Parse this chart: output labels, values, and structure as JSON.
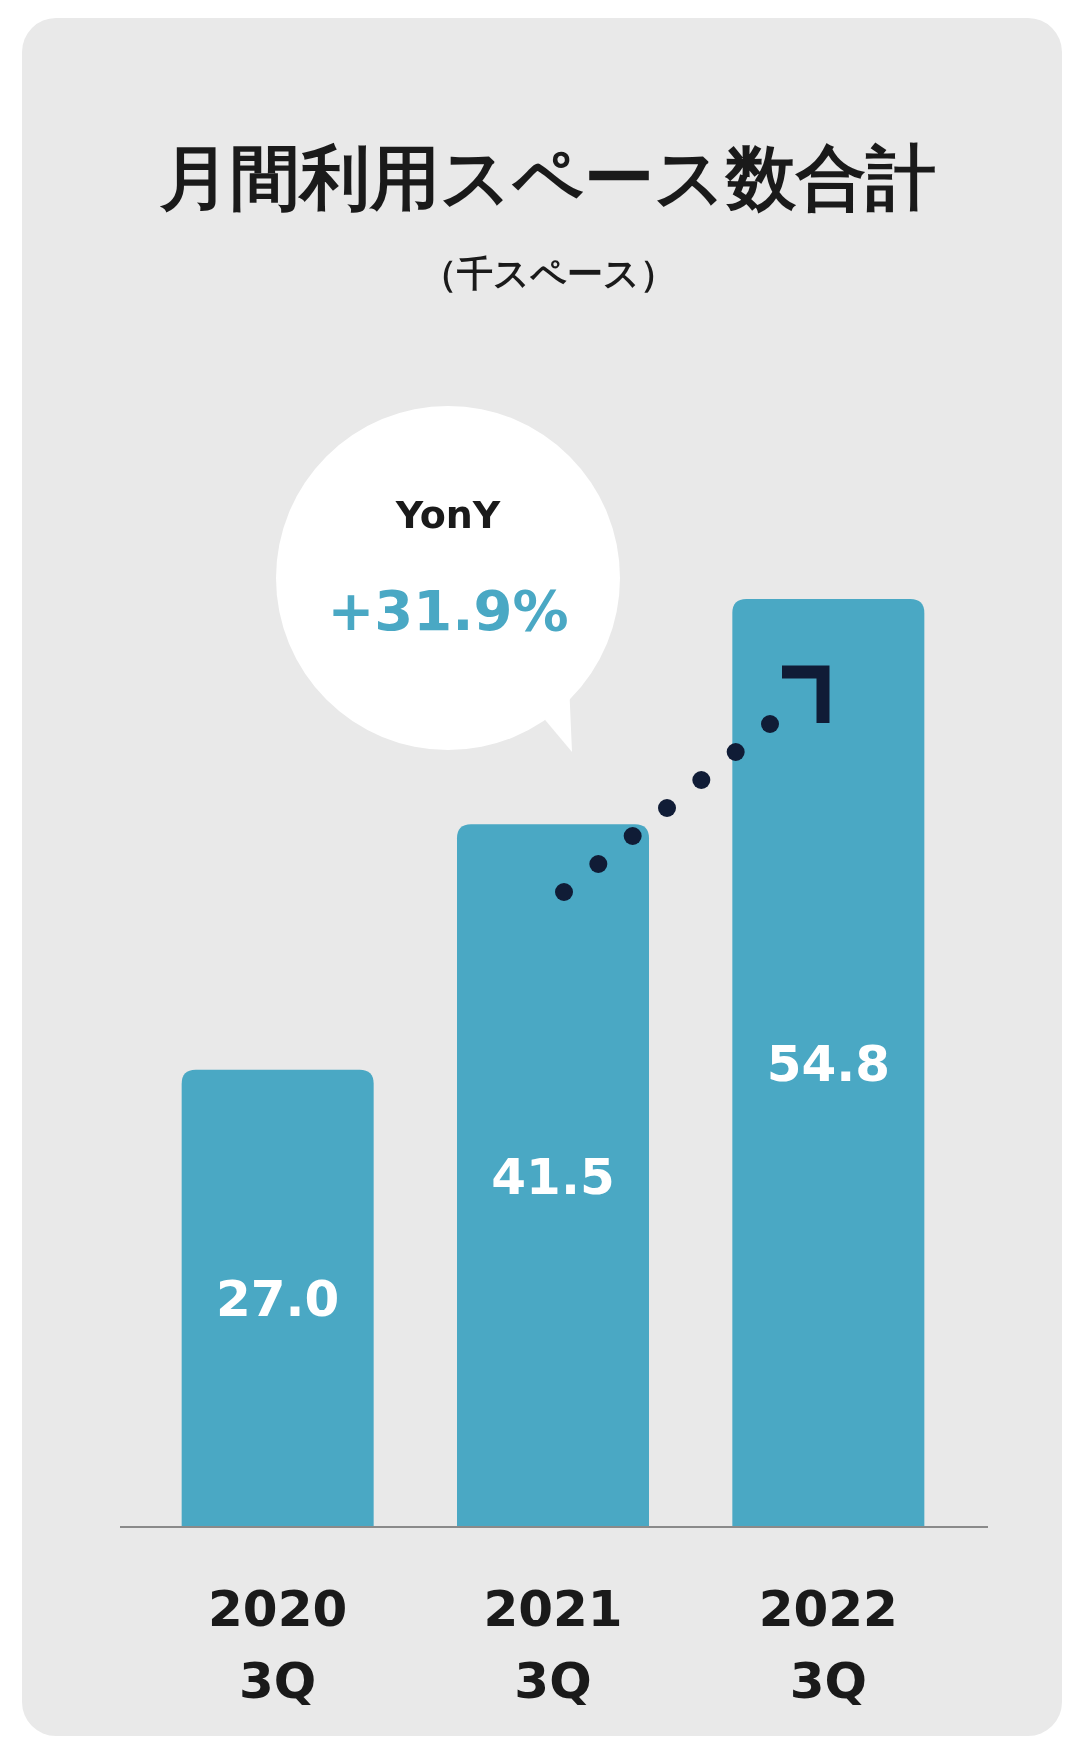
{
  "chart_data": {
    "type": "bar",
    "title": "月間利用スペース数合計",
    "subtitle": "（千スペース）",
    "categories": [
      "2020\n3Q",
      "2021\n3Q",
      "2022\n3Q"
    ],
    "values": [
      27.0,
      41.5,
      54.8
    ],
    "color": "#4aa8c4",
    "value_labels": [
      "27.0",
      "41.5",
      "54.8"
    ],
    "annotations": [
      "YonY",
      "+31.9%"
    ]
  }
}
